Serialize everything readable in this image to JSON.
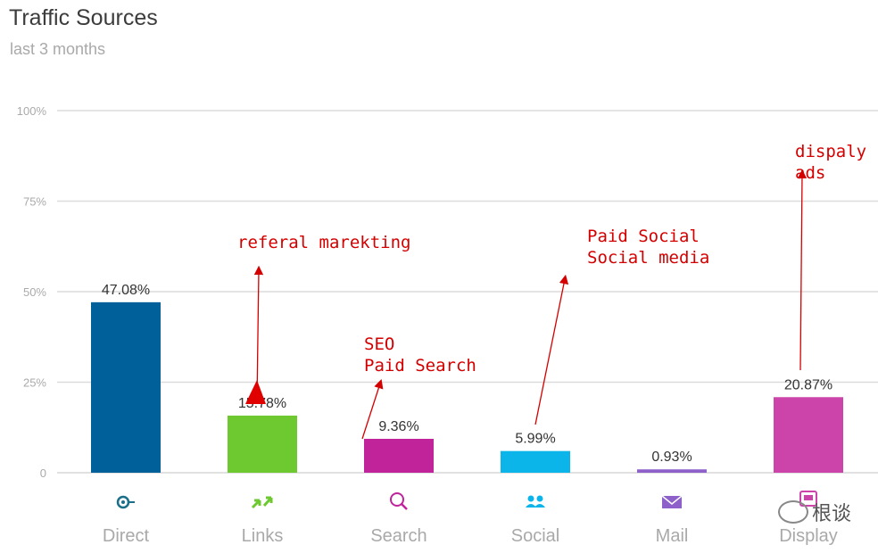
{
  "header": {
    "title": "Traffic Sources",
    "subtitle": "last 3 months"
  },
  "chart_data": {
    "type": "bar",
    "categories": [
      "Direct",
      "Links",
      "Search",
      "Social",
      "Mail",
      "Display"
    ],
    "values": [
      47.08,
      15.78,
      9.36,
      5.99,
      0.93,
      20.87
    ],
    "data_labels": [
      "47.08%",
      "15.78%",
      "9.36%",
      "5.99%",
      "0.93%",
      "20.87%"
    ],
    "colors": [
      "#00619a",
      "#6ec930",
      "#c0239a",
      "#0bb5ea",
      "#8e60c9",
      "#cc44aa"
    ],
    "category_icons": [
      "target-icon",
      "link-arrows-icon",
      "magnifier-icon",
      "people-icon",
      "envelope-icon",
      "display-ad-icon"
    ],
    "ylim": [
      0,
      100
    ],
    "yticks": [
      0,
      25,
      50,
      75,
      100
    ],
    "ytick_labels": [
      "0",
      "25%",
      "50%",
      "75%",
      "100%"
    ],
    "grid": true,
    "annotations": [
      {
        "lines": [
          "referal marekting"
        ],
        "target": "Links"
      },
      {
        "lines": [
          "SEO",
          "Paid Search"
        ],
        "target": "Search"
      },
      {
        "lines": [
          "Paid Social",
          "Social media"
        ],
        "target": "Social"
      },
      {
        "lines": [
          "dispaly",
          "ads"
        ],
        "target": "Display"
      }
    ]
  },
  "watermark": {
    "text": "根谈"
  }
}
